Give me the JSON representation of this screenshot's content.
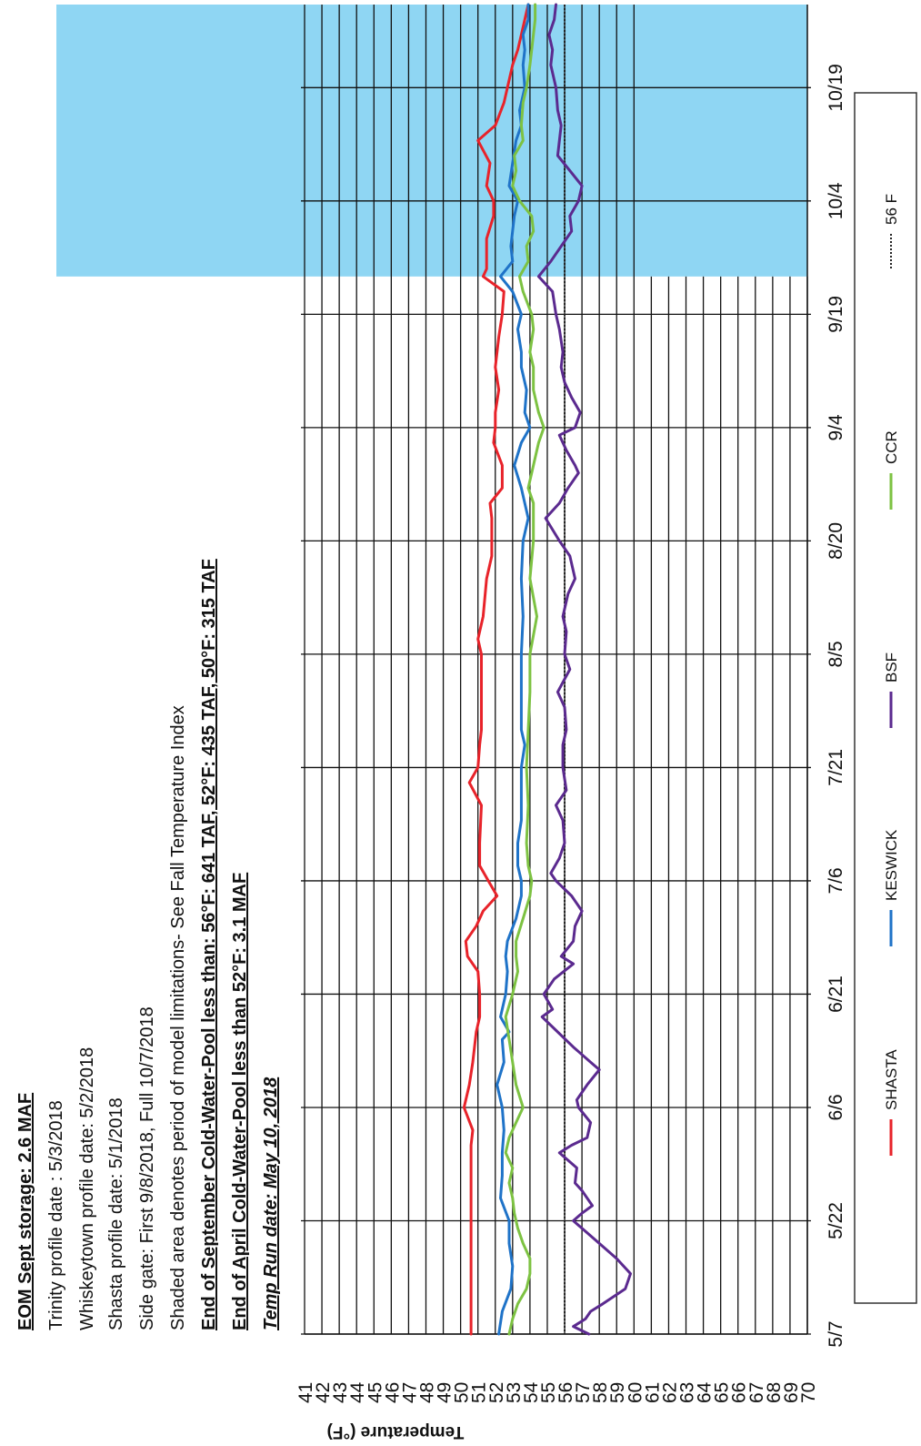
{
  "notes": [
    {
      "text": "EOM Sept storage: 2.6  MAF",
      "style": "bold"
    },
    {
      "text": "Trinity profile date : 5/3/2018",
      "style": "normal"
    },
    {
      "text": "Whiskeytown profile date: 5/2/2018",
      "style": "normal"
    },
    {
      "text": "Shasta profile date: 5/1/2018",
      "style": "normal"
    },
    {
      "text": "Side gate: First 9/8/2018, Full 10/7/2018",
      "style": "normal"
    },
    {
      "text": "Shaded area denotes period of model limitations- See Fall Temperature Index",
      "style": "normal"
    },
    {
      "text": "End of September Cold-Water-Pool less than: 56°F: 641 TAF, 52°F: 435 TAF, 50°F: 315 TAF",
      "style": "bold"
    },
    {
      "text": "End of April Cold-Water-Pool less than 52°F: 3.1 MAF",
      "style": "bold"
    },
    {
      "text": "Temp Run date: May 10, 2018",
      "style": "italic"
    }
  ],
  "chart_data": {
    "type": "line",
    "ylabel": "Temperature (°F)",
    "xlabel": "",
    "ylim": [
      41,
      70
    ],
    "yticks": [
      "41",
      "42",
      "43",
      "44",
      "45",
      "46",
      "47",
      "48",
      "49",
      "50",
      "51",
      "52",
      "53",
      "54",
      "55",
      "56",
      "57",
      "58",
      "59",
      "60",
      "61",
      "62",
      "63",
      "64",
      "65",
      "66",
      "67",
      "68",
      "69",
      "70"
    ],
    "x_tick_labels": [
      "5/7",
      "5/22",
      "6/6",
      "6/21",
      "7/6",
      "7/21",
      "8/5",
      "8/20",
      "9/4",
      "9/19",
      "10/4",
      "10/19"
    ],
    "x_tick_days": [
      0,
      15,
      30,
      45,
      60,
      75,
      90,
      105,
      120,
      135,
      150,
      165
    ],
    "x_range_days": [
      0,
      176
    ],
    "shaded_region_days": [
      140,
      176
    ],
    "shaded_color": "#8fd6f3",
    "reference_line": {
      "name": "56 F",
      "value": 56,
      "color": "#222222"
    },
    "series": [
      {
        "name": "SHASTA",
        "color": "#e8232a",
        "x": [
          0,
          2,
          5,
          8,
          10,
          15,
          20,
          25,
          27,
          30,
          33,
          36,
          38,
          40,
          42,
          45,
          48,
          50,
          52,
          54,
          56,
          58,
          60,
          62,
          65,
          70,
          73,
          75,
          78,
          80,
          85,
          90,
          92,
          95,
          100,
          103,
          105,
          108,
          110,
          112,
          115,
          118,
          120,
          122,
          125,
          128,
          130,
          132,
          135,
          138,
          140,
          141,
          143,
          145,
          148,
          150,
          152,
          155,
          158,
          160,
          163,
          165,
          168,
          170,
          172,
          174,
          176
        ],
        "values": [
          50.6,
          50.6,
          50.6,
          50.6,
          50.6,
          50.6,
          50.6,
          50.6,
          50.7,
          50.2,
          50.5,
          50.7,
          50.8,
          50.9,
          51.1,
          51.1,
          51.0,
          50.4,
          50.3,
          50.9,
          51.3,
          52.1,
          51.6,
          51.1,
          51.1,
          51.2,
          50.5,
          51.0,
          51.1,
          51.2,
          51.2,
          51.2,
          51.0,
          51.3,
          51.5,
          51.8,
          51.8,
          51.8,
          51.7,
          52.4,
          52.4,
          51.9,
          52.0,
          52.0,
          52.2,
          52.0,
          52.1,
          52.2,
          52.4,
          52.5,
          51.3,
          51.5,
          51.5,
          51.5,
          51.9,
          51.9,
          51.5,
          51.7,
          51.0,
          52.0,
          52.5,
          52.7,
          53.0,
          53.3,
          53.5,
          53.7,
          53.9
        ]
      },
      {
        "name": "KESWICK",
        "color": "#1f73c8",
        "x": [
          0,
          3,
          6,
          9,
          12,
          15,
          18,
          21,
          24,
          27,
          30,
          33,
          36,
          39,
          40,
          42,
          45,
          48,
          50,
          52,
          55,
          58,
          60,
          62,
          65,
          68,
          72,
          75,
          78,
          80,
          85,
          90,
          95,
          100,
          105,
          108,
          110,
          112,
          115,
          118,
          120,
          122,
          125,
          128,
          130,
          133,
          135,
          138,
          140,
          142,
          144,
          146,
          148,
          150,
          152,
          155,
          158,
          160,
          162,
          165,
          168,
          170,
          172,
          174,
          176
        ],
        "values": [
          52.2,
          52.4,
          52.9,
          53.0,
          52.8,
          52.8,
          52.3,
          52.4,
          52.4,
          52.5,
          52.4,
          52.1,
          52.5,
          52.4,
          52.8,
          52.3,
          52.6,
          52.7,
          52.6,
          52.7,
          53.2,
          53.5,
          53.5,
          53.3,
          53.3,
          53.5,
          53.5,
          53.5,
          53.7,
          53.5,
          53.5,
          53.5,
          53.6,
          53.5,
          53.6,
          53.9,
          53.7,
          53.5,
          53.1,
          53.5,
          54.0,
          53.7,
          53.8,
          53.5,
          53.5,
          53.3,
          53.5,
          53.0,
          52.3,
          53.0,
          52.9,
          53.0,
          53.1,
          53.3,
          52.8,
          53.0,
          53.2,
          53.5,
          53.4,
          53.7,
          53.6,
          53.7,
          53.6,
          53.9,
          53.9
        ]
      },
      {
        "name": "BSF",
        "color": "#5b2a8f",
        "x": [
          0,
          1,
          2,
          3,
          4,
          6,
          8,
          10,
          12,
          14,
          15,
          16,
          17,
          19,
          20,
          22,
          24,
          25,
          26,
          28,
          30,
          31,
          33,
          35,
          36,
          38,
          40,
          42,
          43,
          45,
          47,
          49,
          50,
          52,
          54,
          56,
          58,
          60,
          61,
          63,
          65,
          68,
          70,
          72,
          75,
          78,
          80,
          83,
          85,
          88,
          90,
          93,
          95,
          98,
          100,
          103,
          105,
          108,
          110,
          112,
          114,
          115,
          117,
          119,
          120,
          122,
          124,
          126,
          128,
          130,
          133,
          135,
          138,
          140,
          142,
          144,
          146,
          148,
          150,
          152,
          154,
          156,
          158,
          160,
          162,
          165,
          168,
          170,
          172,
          174,
          176
        ],
        "values": [
          57.4,
          56.5,
          57.2,
          57.5,
          58.2,
          59.5,
          59.8,
          59.0,
          58.0,
          57.0,
          56.5,
          57.0,
          57.6,
          57.0,
          56.6,
          56.7,
          55.7,
          56.4,
          57.3,
          57.5,
          56.8,
          56.7,
          57.3,
          58.0,
          57.5,
          56.5,
          55.6,
          54.7,
          55.3,
          54.8,
          55.4,
          56.5,
          55.8,
          56.5,
          56.6,
          57.0,
          56.4,
          55.5,
          55.2,
          55.7,
          56.0,
          55.9,
          55.5,
          56.1,
          55.9,
          55.9,
          56.1,
          56.0,
          55.6,
          56.3,
          56.0,
          56.1,
          55.9,
          56.2,
          56.6,
          56.3,
          55.7,
          54.9,
          55.7,
          56.2,
          56.8,
          56.6,
          56.1,
          55.7,
          56.6,
          56.9,
          56.4,
          56.0,
          55.8,
          55.9,
          55.7,
          55.5,
          55.3,
          54.5,
          55.2,
          55.8,
          56.4,
          56.3,
          56.8,
          57.0,
          56.3,
          55.6,
          55.7,
          55.8,
          55.6,
          55.5,
          55.2,
          55.3,
          55.1,
          55.4,
          55.5
        ]
      },
      {
        "name": "CCR",
        "color": "#7dc242",
        "x": [
          0,
          2,
          4,
          6,
          8,
          10,
          12,
          14,
          16,
          18,
          20,
          22,
          24,
          26,
          28,
          30,
          33,
          36,
          39,
          42,
          45,
          48,
          50,
          52,
          55,
          58,
          60,
          62,
          65,
          70,
          75,
          80,
          85,
          90,
          95,
          100,
          105,
          110,
          112,
          115,
          118,
          120,
          122,
          125,
          128,
          130,
          133,
          135,
          138,
          140,
          142,
          144,
          146,
          148,
          150,
          152,
          154,
          156,
          158,
          160,
          163,
          165,
          168,
          170,
          172,
          174,
          176
        ],
        "values": [
          52.8,
          53.0,
          53.3,
          53.8,
          54.0,
          54.0,
          53.6,
          53.3,
          53.1,
          53.0,
          52.8,
          53.0,
          52.6,
          52.8,
          53.2,
          53.6,
          53.2,
          53.0,
          52.8,
          52.6,
          53.0,
          53.3,
          53.2,
          53.2,
          53.6,
          54.0,
          54.1,
          53.9,
          53.8,
          53.9,
          53.8,
          53.9,
          54.0,
          54.0,
          54.4,
          54.0,
          54.2,
          54.2,
          53.9,
          54.2,
          54.5,
          54.8,
          54.5,
          54.2,
          54.2,
          54.0,
          54.2,
          54.1,
          53.6,
          53.4,
          53.9,
          53.8,
          54.2,
          54.1,
          53.4,
          53.0,
          53.2,
          53.1,
          53.6,
          53.5,
          53.6,
          53.8,
          54.0,
          54.1,
          54.2,
          54.3,
          54.3
        ]
      }
    ],
    "legend": {
      "position": "bottom",
      "items": [
        "SHASTA",
        "KESWICK",
        "BSF",
        "CCR",
        "56 F"
      ]
    }
  }
}
